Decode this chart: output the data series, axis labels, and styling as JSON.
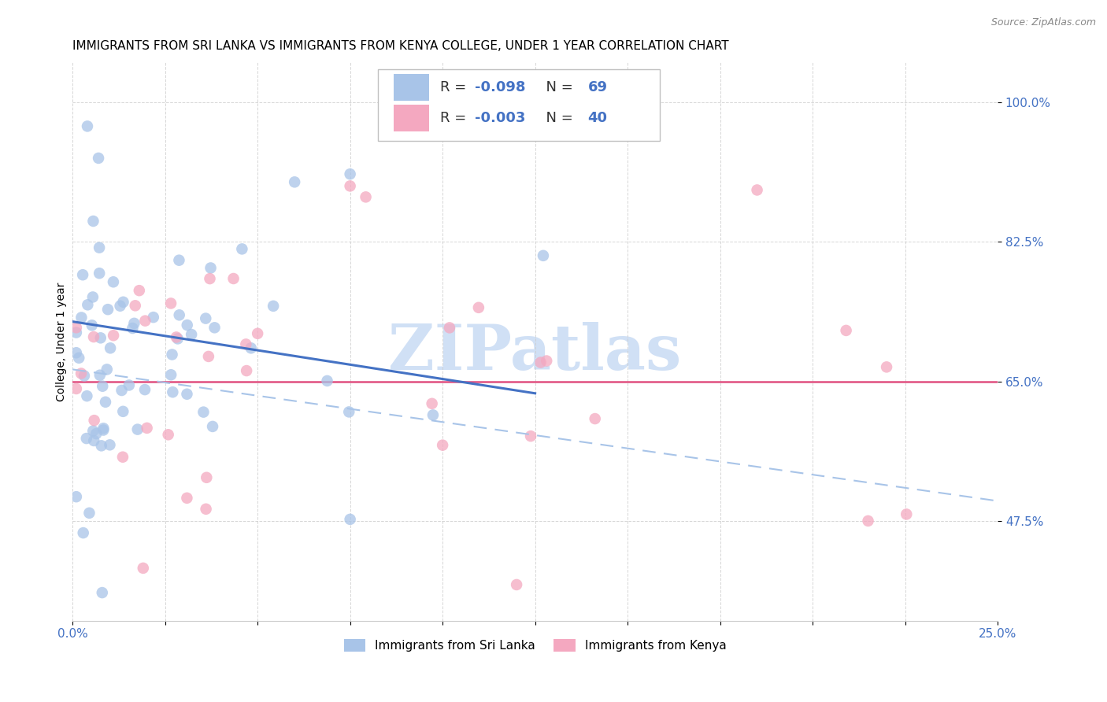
{
  "title": "IMMIGRANTS FROM SRI LANKA VS IMMIGRANTS FROM KENYA COLLEGE, UNDER 1 YEAR CORRELATION CHART",
  "source": "Source: ZipAtlas.com",
  "ylabel": "College, Under 1 year",
  "xlim": [
    0.0,
    0.25
  ],
  "ylim": [
    0.35,
    1.05
  ],
  "yticks": [
    0.475,
    0.65,
    0.825,
    1.0
  ],
  "ytick_labels": [
    "47.5%",
    "65.0%",
    "82.5%",
    "100.0%"
  ],
  "xtick_vals": [
    0.0,
    0.025,
    0.05,
    0.075,
    0.1,
    0.125,
    0.15,
    0.175,
    0.2,
    0.225,
    0.25
  ],
  "xtick_labels": [
    "0.0%",
    "",
    "",
    "",
    "",
    "",
    "",
    "",
    "",
    "",
    "25.0%"
  ],
  "sri_lanka_R": -0.098,
  "sri_lanka_N": 69,
  "kenya_R": -0.003,
  "kenya_N": 40,
  "sri_lanka_color": "#a8c4e8",
  "kenya_color": "#f4a8c0",
  "sri_lanka_trend_color": "#4472c4",
  "kenya_trend_color": "#a8c4e8",
  "kenya_hline_color": "#e05080",
  "kenya_hline_y": 0.65,
  "watermark": "ZIPatlas",
  "watermark_color": "#d0e0f5",
  "background_color": "#ffffff",
  "grid_color": "#cccccc",
  "tick_label_color": "#4472c4",
  "legend_text_color": "#000000",
  "legend_value_color": "#4472c4",
  "title_fontsize": 11,
  "axis_label_fontsize": 10,
  "tick_fontsize": 11,
  "legend_fontsize": 13,
  "sri_lanka_trend_x0": 0.0,
  "sri_lanka_trend_y0": 0.725,
  "sri_lanka_trend_x1": 0.125,
  "sri_lanka_trend_y1": 0.635,
  "kenya_trend_x0": 0.0,
  "kenya_trend_y0": 0.665,
  "kenya_trend_x1": 0.25,
  "kenya_trend_y1": 0.5
}
